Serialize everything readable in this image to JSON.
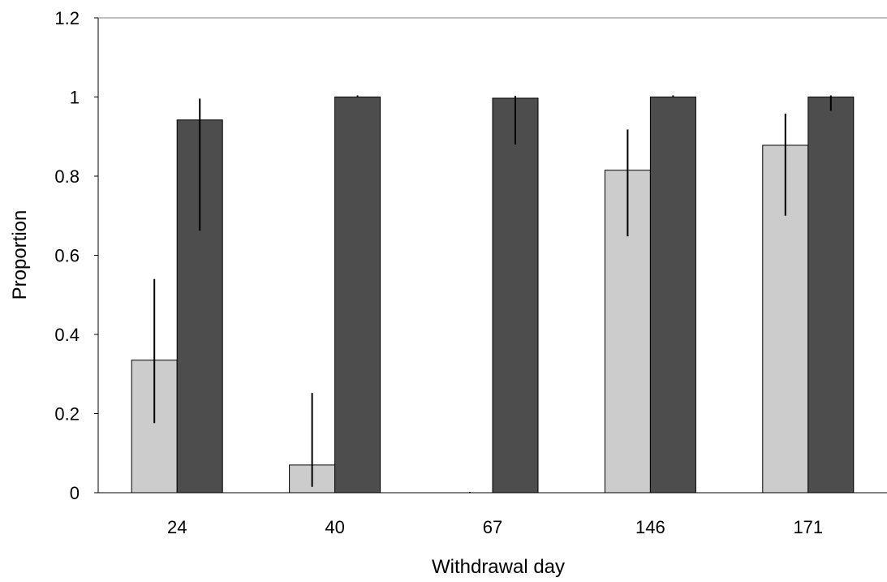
{
  "chart_data": {
    "type": "bar",
    "title": "",
    "xlabel": "Withdrawal day",
    "ylabel": "Proportion",
    "categories": [
      "24",
      "40",
      "67",
      "146",
      "171"
    ],
    "ylim": [
      0,
      1.2
    ],
    "yticks": [
      "0",
      "0.2",
      "0.4",
      "0.6",
      "0.8",
      "1",
      "1.2"
    ],
    "grid": false,
    "legend": "none",
    "series": [
      {
        "color": "#cccccc",
        "values": [
          0.335,
          0.07,
          0.0,
          0.815,
          0.878
        ],
        "err_low": [
          0.176,
          0.015,
          0.0,
          0.648,
          0.7
        ],
        "err_high": [
          0.54,
          0.252,
          0.0,
          0.918,
          0.958
        ]
      },
      {
        "color": "#4d4d4d",
        "values": [
          0.942,
          1.0,
          0.997,
          1.0,
          1.0
        ],
        "err_low": [
          0.662,
          1.0,
          0.88,
          1.0,
          0.965
        ],
        "err_high": [
          0.996,
          1.002,
          1.003,
          1.002,
          1.004
        ]
      }
    ]
  }
}
